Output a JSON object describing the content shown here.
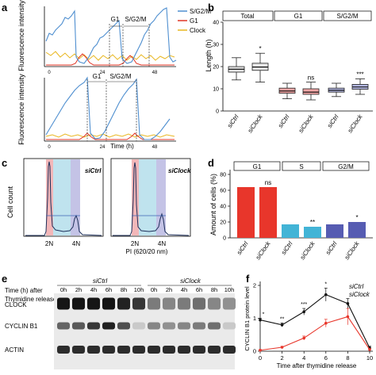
{
  "panels": {
    "a": {
      "letter": "a",
      "ylabel_top": "Fluorescence intensity",
      "ylabel_bottom": "Fluorescence intensity",
      "legend": [
        {
          "label": "S/G2/M",
          "color": "#4f8fd0"
        },
        {
          "label": "G1",
          "color": "#e03424"
        },
        {
          "label": "Clock",
          "color": "#e9b720"
        }
      ],
      "top_markers": [
        "G1",
        "S/G2/M"
      ],
      "bottom_markers": [
        "G1",
        "S/G2/M"
      ],
      "top_ticks": [
        "0",
        "24",
        "48"
      ],
      "bottom_ticks": [
        "0",
        "24",
        "48"
      ],
      "xlabel": "Time (h)"
    },
    "b": {
      "letter": "b",
      "ylabel": "Length (h)",
      "groups": [
        "Total",
        "G1",
        "S/G2/M"
      ],
      "yticks": [
        "0",
        "10",
        "20",
        "30",
        "40"
      ],
      "ylim": [
        0,
        40
      ],
      "categories": [
        "siCtrl",
        "siClock",
        "siCtrl",
        "siClock",
        "siCtrl",
        "siClock"
      ],
      "signif": [
        "*",
        "ns",
        "***"
      ],
      "boxes": [
        {
          "min": 14,
          "q1": 17.5,
          "median": 18.8,
          "q3": 20,
          "max": 24,
          "color": "#e4e4e4"
        },
        {
          "min": 13,
          "q1": 18.3,
          "median": 19.8,
          "q3": 21.5,
          "max": 26,
          "color": "#e4e4e4"
        },
        {
          "min": 5.5,
          "q1": 8,
          "median": 9,
          "q3": 10.3,
          "max": 12.5,
          "color": "#f2a7a7"
        },
        {
          "min": 5,
          "q1": 7.5,
          "median": 8.5,
          "q3": 10,
          "max": 13,
          "color": "#f2a7a7"
        },
        {
          "min": 6.5,
          "q1": 8.5,
          "median": 9.3,
          "q3": 10.3,
          "max": 12.5,
          "color": "#b5b9e3"
        },
        {
          "min": 7.5,
          "q1": 9.8,
          "median": 10.8,
          "q3": 12,
          "max": 14.5,
          "color": "#b5b9e3"
        }
      ]
    },
    "c": {
      "letter": "c",
      "ylabel": "Cell count",
      "labels": [
        "siCtrl",
        "siClock"
      ],
      "xticks": [
        "2N",
        "4N",
        "2N",
        "4N"
      ],
      "xlabel": "PI (620/20 nm)"
    },
    "d": {
      "letter": "d",
      "ylabel": "Amount of cells (%)",
      "groups": [
        "G1",
        "S",
        "G2/M"
      ],
      "yticks": [
        "0",
        "20",
        "40",
        "60",
        "80"
      ],
      "ylim": [
        0,
        80
      ],
      "categories": [
        "siCtrl",
        "siClock",
        "siCtrl",
        "siClock",
        "siCtrl",
        "siClock"
      ],
      "values": [
        64,
        64,
        17,
        14,
        17,
        20
      ],
      "colors": [
        "#e8362b",
        "#e8362b",
        "#42b4d6",
        "#42b4d6",
        "#565cb2",
        "#565cb2"
      ],
      "signif": [
        "ns",
        "**",
        "*"
      ]
    },
    "e": {
      "letter": "e",
      "header_line1": "Time (h) after",
      "header_line2": "Thymidine release",
      "group_labels": [
        "siCtrl",
        "siClock"
      ],
      "time_labels": [
        "0h",
        "2h",
        "4h",
        "6h",
        "8h",
        "10h",
        "0h",
        "2h",
        "4h",
        "6h",
        "8h",
        "10h"
      ],
      "rows": [
        "CLOCK",
        "CYCLIN B1",
        "ACTIN"
      ],
      "band_levels": {
        "CLOCK": [
          0.95,
          0.95,
          0.95,
          0.95,
          0.9,
          0.8,
          0.5,
          0.45,
          0.5,
          0.55,
          0.45,
          0.4
        ],
        "CYCLIN B1": [
          0.6,
          0.65,
          0.8,
          0.9,
          0.7,
          0.15,
          0.45,
          0.4,
          0.45,
          0.5,
          0.55,
          0.15
        ],
        "ACTIN": [
          0.85,
          0.85,
          0.85,
          0.85,
          0.85,
          0.85,
          0.85,
          0.85,
          0.85,
          0.85,
          0.85,
          0.85
        ]
      }
    },
    "f": {
      "letter": "f",
      "ylabel": "CYCLIN B1 protein level",
      "xlabel": "Time after thymidine release",
      "legend": [
        {
          "label": "siCtrl",
          "color": "#111111"
        },
        {
          "label": "siClock",
          "color": "#e8362b"
        }
      ]
    }
  },
  "chart_data": [
    {
      "type": "box",
      "panel": "b",
      "ylabel": "Length (h)",
      "ylim": [
        0,
        40
      ],
      "groups": [
        "Total",
        "G1",
        "S/G2/M"
      ],
      "categories": [
        "siCtrl",
        "siClock",
        "siCtrl",
        "siClock",
        "siCtrl",
        "siClock"
      ],
      "medians": [
        18.8,
        19.8,
        9,
        8.5,
        9.3,
        10.8
      ]
    },
    {
      "type": "bar",
      "panel": "d",
      "ylabel": "Amount of cells (%)",
      "ylim": [
        0,
        80
      ],
      "groups": [
        "G1",
        "S",
        "G2/M"
      ],
      "categories": [
        "siCtrl",
        "siClock",
        "siCtrl",
        "siClock",
        "siCtrl",
        "siClock"
      ],
      "values": [
        64,
        64,
        17,
        14,
        17,
        20
      ]
    },
    {
      "type": "line",
      "panel": "f",
      "xlabel": "Time after thymidine release",
      "ylabel": "CYCLIN B1 protein level",
      "x": [
        0,
        2,
        4,
        6,
        8,
        10
      ],
      "xticks": [
        "0",
        "2",
        "4",
        "6",
        "8",
        "10"
      ],
      "yticks": [
        "0",
        "1",
        "2"
      ],
      "ylim": [
        0,
        2
      ],
      "series": [
        {
          "name": "siCtrl",
          "values": [
            0.95,
            0.8,
            1.2,
            1.72,
            1.45,
            0.1
          ],
          "errors": [
            0.05,
            0.06,
            0.1,
            0.2,
            0.15,
            0.05
          ],
          "color": "#111111"
        },
        {
          "name": "siClock",
          "values": [
            0.03,
            0.12,
            0.4,
            0.85,
            1.05,
            0.05
          ],
          "errors": [
            0.02,
            0.03,
            0.06,
            0.12,
            0.25,
            0.03
          ],
          "color": "#e8362b"
        }
      ],
      "signif": [
        "*",
        "**",
        "***",
        "*"
      ]
    }
  ]
}
